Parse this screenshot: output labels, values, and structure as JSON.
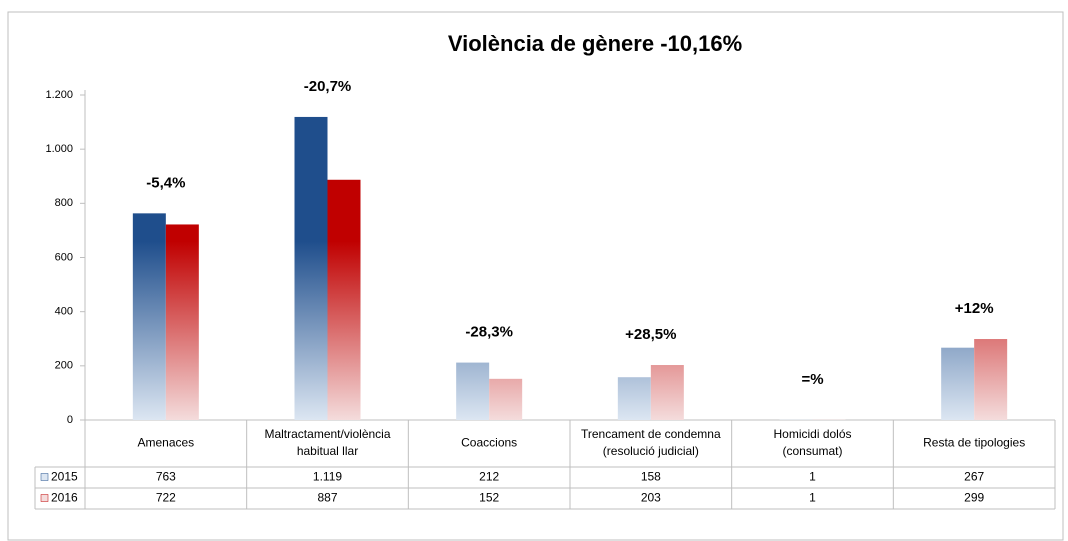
{
  "chart_data": {
    "type": "bar",
    "title": "Violència de gènere   -10,16%",
    "categories": [
      [
        "Amenaces"
      ],
      [
        "Maltractament/violència",
        "habitual llar"
      ],
      [
        "Coaccions"
      ],
      [
        "Trencament de condemna",
        "(resolució judicial)"
      ],
      [
        "Homicidi dolós",
        "(consumat)"
      ],
      [
        "Resta de tipologies"
      ]
    ],
    "series": [
      {
        "name": "2015",
        "color": "#1f4e8c",
        "light": "#dce6f2",
        "values": [
          763,
          1119,
          212,
          158,
          1,
          267
        ],
        "value_labels": [
          "763",
          "1.119",
          "212",
          "158",
          "1",
          "267"
        ]
      },
      {
        "name": "2016",
        "color": "#c00000",
        "light": "#f4dcdc",
        "values": [
          722,
          887,
          152,
          203,
          1,
          299
        ],
        "value_labels": [
          "722",
          "887",
          "152",
          "203",
          "1",
          "299"
        ]
      }
    ],
    "annotations": [
      "-5,4%",
      "-20,7%",
      "-28,3%",
      "+28,5%",
      "=%",
      "+12%"
    ],
    "ylim": [
      0,
      1200
    ],
    "yticks": [
      0,
      200,
      400,
      600,
      800,
      {
        "value": 1000,
        "label": "1.000"
      },
      {
        "value": 1200,
        "label": "1.200"
      }
    ],
    "grid": false
  }
}
